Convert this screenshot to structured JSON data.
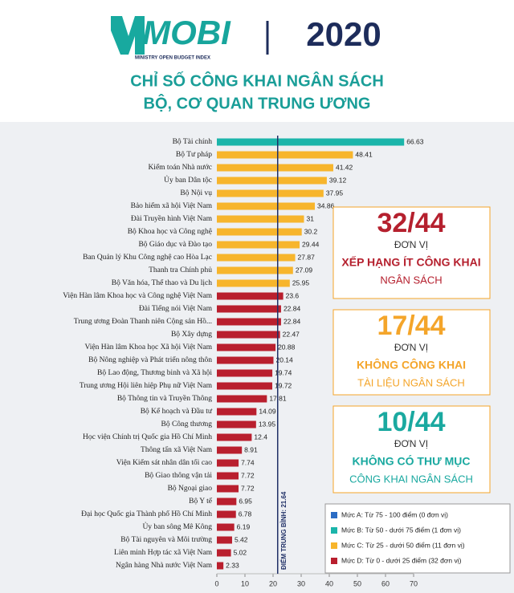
{
  "header": {
    "logo": "MOBI",
    "logo_subtitle": "MINISTRY OPEN BUDGET INDEX",
    "year": "2020",
    "title_line1": "CHỈ SỐ CÔNG KHAI NGÂN SÁCH",
    "title_line2": "BỘ, CƠ QUAN TRUNG ƯƠNG"
  },
  "callouts": [
    {
      "count": "32/44",
      "unit": "ĐƠN VỊ",
      "line1": "XẾP HẠNG ÍT CÔNG KHAI",
      "line2": "NGÂN SÁCH",
      "color": "#b5202e"
    },
    {
      "count": "17/44",
      "unit": "ĐƠN VỊ",
      "line1": "KHÔNG CÔNG KHAI",
      "line2": "TÀI LIỆU NGÂN SÁCH",
      "color": "#f4a52a"
    },
    {
      "count": "10/44",
      "unit": "ĐƠN VỊ",
      "line1": "KHÔNG CÓ THƯ MỤC",
      "line2": "CÔNG KHAI NGÂN SÁCH",
      "color": "#1aa9a0"
    }
  ],
  "chart_data": {
    "type": "bar",
    "orientation": "horizontal",
    "categories": [
      "Bộ Tài chính",
      "Bộ Tư pháp",
      "Kiểm toán Nhà nước",
      "Ủy ban Dân tộc",
      "Bộ Nội vụ",
      "Bảo hiểm xã hội Việt Nam",
      "Đài Truyền hình Việt Nam",
      "Bộ Khoa học và Công nghệ",
      "Bộ Giáo dục và Đào tạo",
      "Ban Quản lý Khu Công nghệ cao Hòa Lạc",
      "Thanh tra Chính phủ",
      "Bộ Văn hóa, Thể thao và Du lịch",
      "Viện Hàn lâm Khoa học và Công nghệ Việt Nam",
      "Đài Tiếng nói Việt Nam",
      "Trung ương Đoàn Thanh niên Cộng sản Hồ...",
      "Bộ Xây dựng",
      "Viện Hàn lâm Khoa học Xã hội Việt Nam",
      "Bộ Nông nghiệp và Phát triển nông thôn",
      "Bộ Lao động, Thương binh và Xã hội",
      "Trung ương Hội liên hiệp Phụ nữ Việt Nam",
      "Bộ Thông tin và Truyền Thông",
      "Bộ Kế hoạch và Đầu tư",
      "Bộ Công thương",
      "Học viện Chính trị Quốc gia Hồ Chí Minh",
      "Thông tấn xã Việt Nam",
      "Viện Kiểm sát nhân dân tối cao",
      "Bộ Giao thông vận tải",
      "Bộ Ngoại giao",
      "Bộ Y tế",
      "Đại học Quốc gia Thành phố Hồ Chí Minh",
      "Ủy ban sông Mê Kông",
      "Bộ Tài nguyên và Môi trường",
      "Liên minh Hợp tác xã Việt Nam",
      "Ngân hàng Nhà nước Việt Nam"
    ],
    "values": [
      66.63,
      48.41,
      41.42,
      39.12,
      37.95,
      34.86,
      31,
      30.2,
      29.44,
      27.87,
      27.09,
      25.95,
      23.6,
      22.84,
      22.84,
      22.47,
      20.88,
      20.14,
      19.74,
      19.72,
      17.81,
      14.09,
      13.95,
      12.4,
      8.91,
      7.74,
      7.72,
      7.72,
      6.95,
      6.78,
      6.19,
      5.42,
      5.02,
      2.33
    ],
    "colors": [
      "#1bb5aa",
      "#f7b52c",
      "#f7b52c",
      "#f7b52c",
      "#f7b52c",
      "#f7b52c",
      "#f7b52c",
      "#f7b52c",
      "#f7b52c",
      "#f7b52c",
      "#f7b52c",
      "#f7b52c",
      "#b91f2e",
      "#b91f2e",
      "#b91f2e",
      "#b91f2e",
      "#b91f2e",
      "#b91f2e",
      "#b91f2e",
      "#b91f2e",
      "#b91f2e",
      "#b91f2e",
      "#b91f2e",
      "#b91f2e",
      "#b91f2e",
      "#b91f2e",
      "#b91f2e",
      "#b91f2e",
      "#b91f2e",
      "#b91f2e",
      "#b91f2e",
      "#b91f2e",
      "#b91f2e",
      "#b91f2e"
    ],
    "xlim": [
      0,
      70
    ],
    "xticks": [
      0,
      10,
      20,
      30,
      40,
      50,
      60,
      70
    ],
    "mean": {
      "value": 21.64,
      "label": "ĐIỂM TRUNG BÌNH: 21.64",
      "color": "#1f2f66"
    },
    "legend": [
      {
        "name": "Mức A: Từ 75 - 100 điểm (0 đơn vị)",
        "color": "#2b6cc4"
      },
      {
        "name": "Mức B: Từ 50 - dưới 75 điểm (1 đơn vị)",
        "color": "#1bb5aa"
      },
      {
        "name": "Mức C: Từ 25 - dưới 50 điểm (11 đơn vị)",
        "color": "#f7b52c"
      },
      {
        "name": "Mức D: Từ 0 - dưới 25 điểm (32 đơn vị)",
        "color": "#b91f2e"
      }
    ]
  }
}
